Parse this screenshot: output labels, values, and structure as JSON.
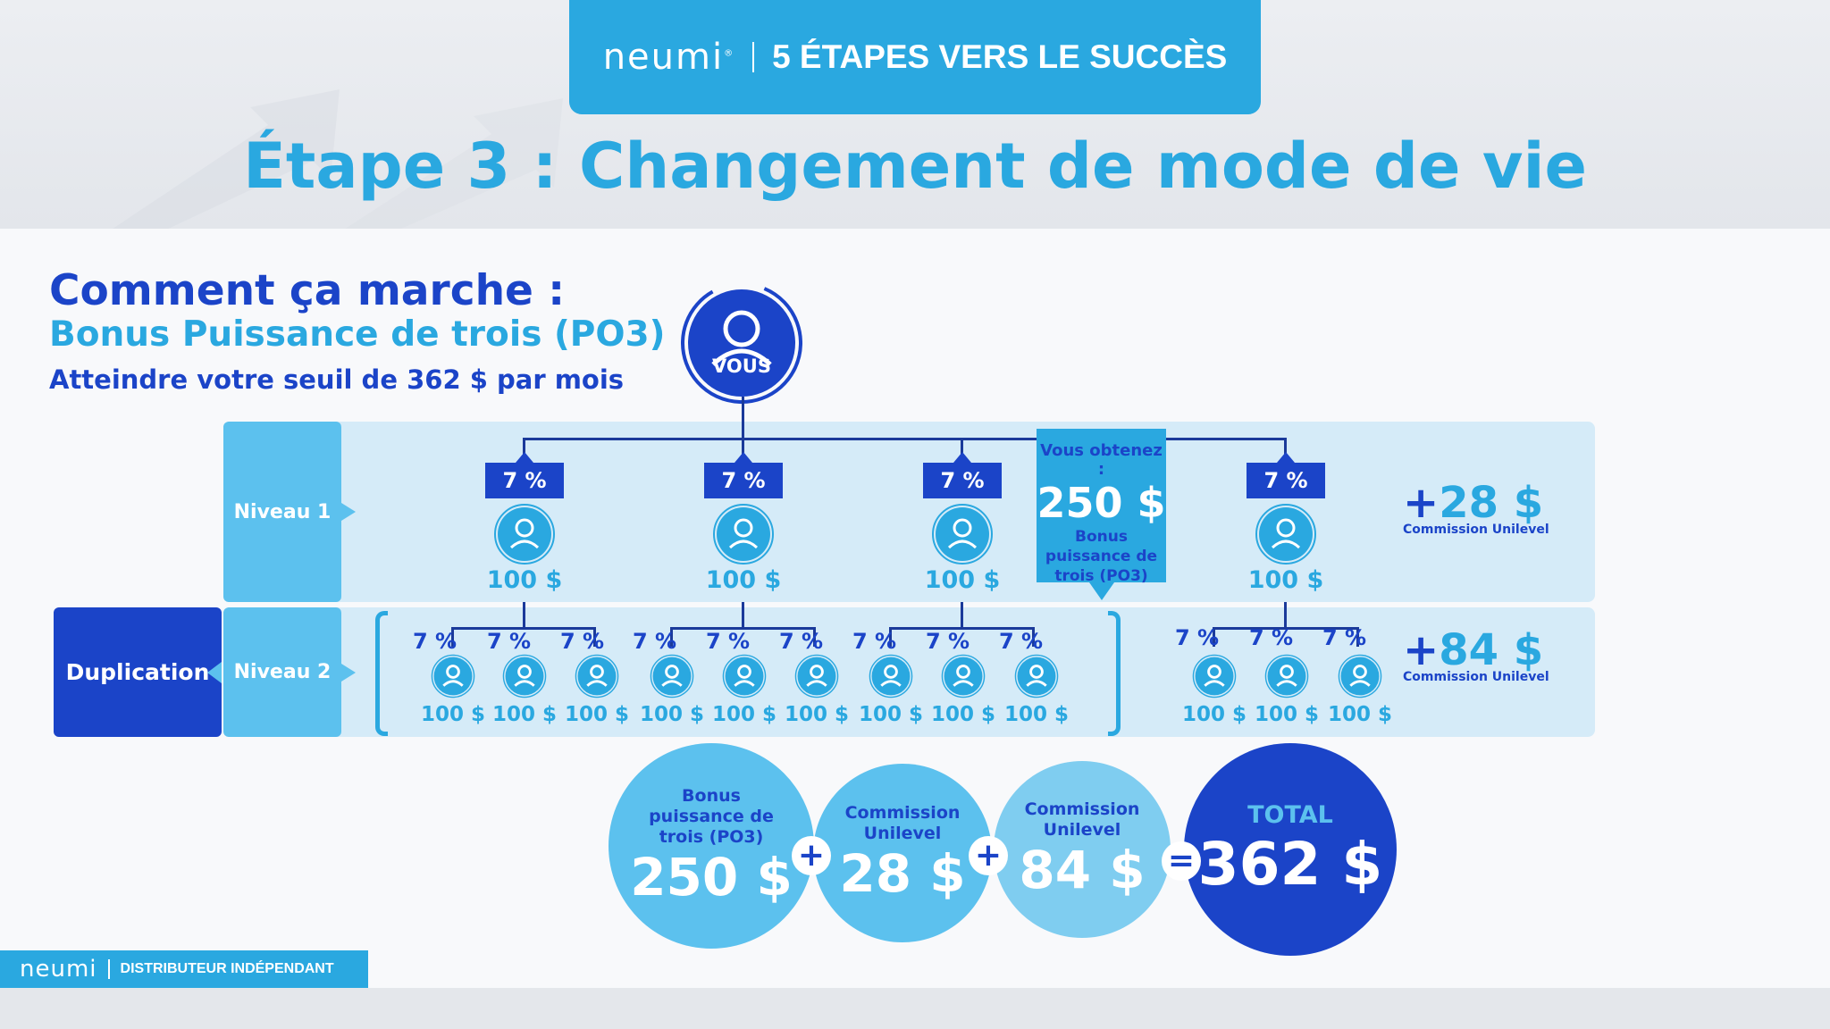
{
  "header": {
    "brand": "neumi",
    "brand_mark": "®",
    "tagline": "5 ÉTAPES VERS LE SUCCÈS"
  },
  "title": "Étape 3 : Changement de mode de vie",
  "intro": {
    "heading": "Comment ça marche :",
    "subheading": "Bonus Puissance de trois (PO3)",
    "description": "Atteindre votre seuil de 362 $ par mois"
  },
  "you_label": "VOUS",
  "levels": {
    "duplication": "Duplication",
    "level1": "Niveau 1",
    "level2": "Niveau 2"
  },
  "level1_nodes": [
    {
      "pct": "7 %",
      "amount": "100 $"
    },
    {
      "pct": "7 %",
      "amount": "100 $"
    },
    {
      "pct": "7 %",
      "amount": "100 $"
    },
    {
      "pct": "7 %",
      "amount": "100 $"
    }
  ],
  "level2_nodes": [
    {
      "pct": "7 %",
      "amount": "100 $"
    },
    {
      "pct": "7 %",
      "amount": "100 $"
    },
    {
      "pct": "7 %",
      "amount": "100 $"
    },
    {
      "pct": "7 %",
      "amount": "100 $"
    },
    {
      "pct": "7 %",
      "amount": "100 $"
    },
    {
      "pct": "7 %",
      "amount": "100 $"
    },
    {
      "pct": "7 %",
      "amount": "100 $"
    },
    {
      "pct": "7 %",
      "amount": "100 $"
    },
    {
      "pct": "7 %",
      "amount": "100 $"
    },
    {
      "pct": "7 %",
      "amount": "100 $"
    },
    {
      "pct": "7 %",
      "amount": "100 $"
    },
    {
      "pct": "7 %",
      "amount": "100 $"
    }
  ],
  "callout": {
    "line1": "Vous obtenez :",
    "amount": "250 $",
    "line2": "Bonus",
    "line3": "puissance de",
    "line4": "trois (PO3)"
  },
  "bonuses": {
    "level1": {
      "plus": "+",
      "amount": "28 $",
      "label": "Commission Unilevel"
    },
    "level2": {
      "plus": "+",
      "amount": "84 $",
      "label": "Commission Unilevel"
    }
  },
  "summary": {
    "po3": {
      "label1": "Bonus",
      "label2": "puissance de",
      "label3": "trois (PO3)",
      "value": "250 $"
    },
    "unilevel1": {
      "label1": "Commission",
      "label2": "Unilevel",
      "value": "28 $"
    },
    "unilevel2": {
      "label1": "Commission",
      "label2": "Unilevel",
      "value": "84 $"
    },
    "total": {
      "label": "TOTAL",
      "value": "362 $"
    },
    "plus": "+",
    "equals": "="
  },
  "footer": {
    "brand": "neumi",
    "text": "DISTRIBUTEUR INDÉPENDANT"
  },
  "colors": {
    "light_blue": "#2aa8e0",
    "dark_blue": "#1b44c8",
    "row_bg": "#d5ebf8"
  }
}
